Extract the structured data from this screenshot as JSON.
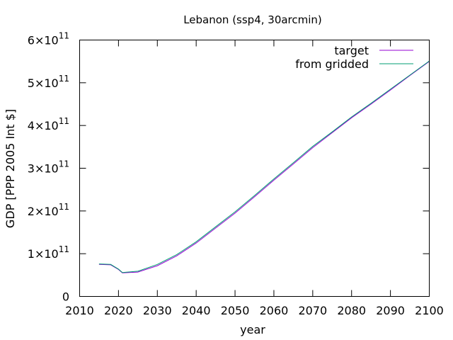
{
  "chart_data": {
    "type": "line",
    "title": "Lebanon (ssp4, 30arcmin)",
    "xlabel": "year",
    "ylabel": "GDP [PPP 2005 Int $]",
    "xlim": [
      2010,
      2100
    ],
    "ylim": [
      0,
      600000000000
    ],
    "grid": false,
    "legend_position": "top-right",
    "x_ticks": [
      {
        "value": 2010,
        "label": "2010"
      },
      {
        "value": 2020,
        "label": "2020"
      },
      {
        "value": 2030,
        "label": "2030"
      },
      {
        "value": 2040,
        "label": "2040"
      },
      {
        "value": 2050,
        "label": "2050"
      },
      {
        "value": 2060,
        "label": "2060"
      },
      {
        "value": 2070,
        "label": "2070"
      },
      {
        "value": 2080,
        "label": "2080"
      },
      {
        "value": 2090,
        "label": "2090"
      },
      {
        "value": 2100,
        "label": "2100"
      }
    ],
    "y_ticks": [
      {
        "value": 0,
        "mantissa": "0",
        "exponent": ""
      },
      {
        "value": 100000000000,
        "mantissa": "1×10",
        "exponent": "11"
      },
      {
        "value": 200000000000,
        "mantissa": "2×10",
        "exponent": "11"
      },
      {
        "value": 300000000000,
        "mantissa": "3×10",
        "exponent": "11"
      },
      {
        "value": 400000000000,
        "mantissa": "4×10",
        "exponent": "11"
      },
      {
        "value": 500000000000,
        "mantissa": "5×10",
        "exponent": "11"
      },
      {
        "value": 600000000000,
        "mantissa": "6×10",
        "exponent": "11"
      }
    ],
    "series": [
      {
        "name": "target",
        "color": "#9400d3",
        "x": [
          2015,
          2018,
          2020,
          2021,
          2025,
          2030,
          2035,
          2040,
          2045,
          2050,
          2055,
          2060,
          2065,
          2070,
          2075,
          2080,
          2085,
          2090,
          2095,
          2100
        ],
        "y": [
          75000000000,
          74000000000,
          63000000000,
          55000000000,
          57000000000,
          72000000000,
          95000000000,
          125000000000,
          160000000000,
          195000000000,
          233000000000,
          272000000000,
          310000000000,
          348000000000,
          383000000000,
          418000000000,
          450000000000,
          483000000000,
          517000000000,
          550000000000
        ]
      },
      {
        "name": "from gridded",
        "color": "#009e73",
        "x": [
          2015,
          2018,
          2020,
          2021,
          2025,
          2030,
          2035,
          2040,
          2045,
          2050,
          2055,
          2060,
          2065,
          2070,
          2075,
          2080,
          2085,
          2090,
          2095,
          2100
        ],
        "y": [
          76000000000,
          75000000000,
          64000000000,
          56000000000,
          59000000000,
          75000000000,
          98000000000,
          128000000000,
          163000000000,
          198000000000,
          236000000000,
          275000000000,
          313000000000,
          351000000000,
          385000000000,
          420000000000,
          452000000000,
          485000000000,
          518000000000,
          551000000000
        ]
      }
    ]
  }
}
